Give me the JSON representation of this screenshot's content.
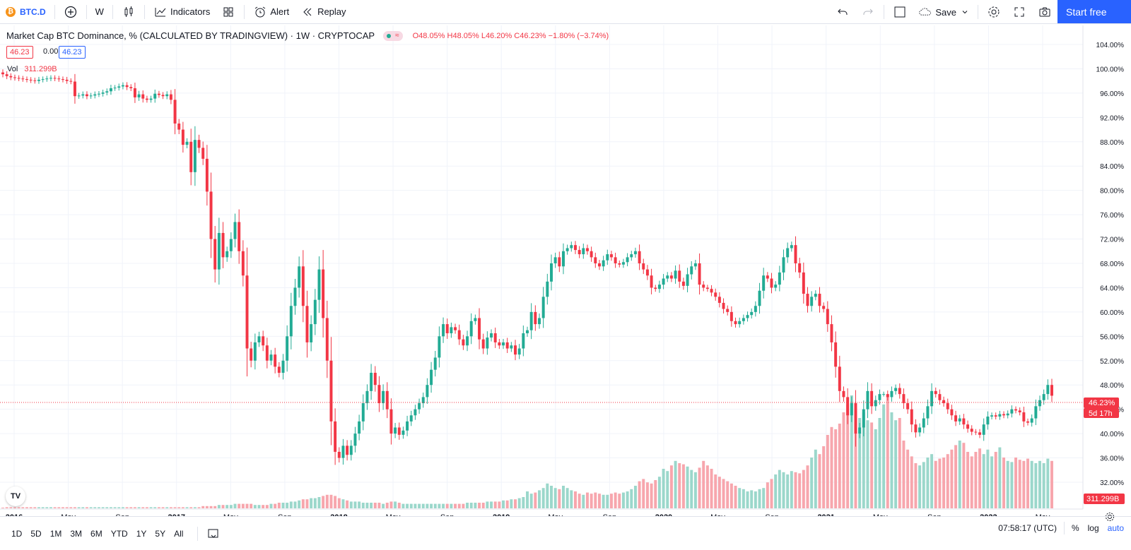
{
  "toolbar": {
    "symbol_badge": "₿",
    "symbol": "BTC.D",
    "interval": "W",
    "indicators_label": "Indicators",
    "alert_label": "Alert",
    "replay_label": "Replay",
    "save_label": "Save",
    "start_label": "Start free"
  },
  "legend": {
    "title": "Market Cap BTC Dominance, % (CALCULATED BY TRADINGVIEW) · 1W · CRYPTOCAP",
    "pill_icon": "≈",
    "ohlc": "O48.05% H48.05% L46.20% C46.23% −1.80% (−3.74%)",
    "bid": "46.23",
    "spread": "0.00",
    "ask": "46.23",
    "vol_label": "Vol",
    "vol_value": "311.299B"
  },
  "price_label": "46.23%",
  "countdown_label": "5d 17h",
  "volume_label": "311.299B",
  "logo": "TV",
  "bottom": {
    "ranges": [
      "1D",
      "5D",
      "1M",
      "3M",
      "6M",
      "YTD",
      "1Y",
      "5Y",
      "All"
    ],
    "time": "07:58:17 (UTC)",
    "percent": "%",
    "log": "log",
    "auto": "auto"
  },
  "colors": {
    "up": "#22ab94",
    "down": "#f23645",
    "vol_up": "#9bd7cb",
    "vol_down": "#f7a6ad",
    "accent": "#2962ff"
  },
  "chart_data": {
    "type": "candlestick",
    "title": "Market Cap BTC Dominance, % (CALCULATED BY TRADINGVIEW) · 1W · CRYPTOCAP",
    "ylim": [
      30,
      105
    ],
    "yticks": [
      "32.00%",
      "36.00%",
      "40.00%",
      "44.00%",
      "48.00%",
      "52.00%",
      "56.00%",
      "60.00%",
      "64.00%",
      "68.00%",
      "72.00%",
      "76.00%",
      "80.00%",
      "84.00%",
      "88.00%",
      "92.00%",
      "96.00%",
      "100.00%",
      "104.00%"
    ],
    "xticks": [
      {
        "label": "2016",
        "bold": true
      },
      {
        "label": "May"
      },
      {
        "label": "Sep"
      },
      {
        "label": "2017",
        "bold": true
      },
      {
        "label": "May"
      },
      {
        "label": "Sep"
      },
      {
        "label": "2018",
        "bold": true
      },
      {
        "label": "May"
      },
      {
        "label": "Sep"
      },
      {
        "label": "2019",
        "bold": true
      },
      {
        "label": "May"
      },
      {
        "label": "Sep"
      },
      {
        "label": "2020",
        "bold": true
      },
      {
        "label": "May"
      },
      {
        "label": "Sep"
      },
      {
        "label": "2021",
        "bold": true
      },
      {
        "label": "May"
      },
      {
        "label": "Sep"
      },
      {
        "label": "2022",
        "bold": true
      },
      {
        "label": "May"
      }
    ],
    "last_value": 46.23,
    "closes": [
      99.1,
      98.8,
      98.6,
      98.5,
      98.4,
      98.3,
      98.2,
      98.1,
      98.0,
      98.2,
      98.3,
      98.4,
      98.5,
      98.4,
      98.3,
      98.2,
      98.0,
      97.9,
      95.5,
      95.6,
      95.8,
      95.5,
      95.6,
      95.8,
      95.9,
      96.1,
      96.3,
      96.8,
      96.9,
      97.1,
      97.3,
      97.0,
      96.8,
      95.3,
      95.8,
      95.1,
      94.9,
      95.1,
      95.9,
      95.7,
      95.5,
      95.8,
      94.9,
      91.0,
      90.0,
      87.5,
      88.0,
      83.0,
      88.3,
      87.0,
      85.2,
      79.8,
      72.0,
      67.0,
      73.0,
      69.0,
      70.0,
      72.0,
      74.8,
      70.0,
      66.0,
      54.0,
      52.0,
      55.0,
      56.0,
      54.5,
      52.0,
      53.0,
      51.0,
      50.0,
      52.0,
      56.0,
      61.0,
      64.0,
      67.5,
      61.0,
      55.0,
      58.0,
      62.0,
      67.0,
      59.0,
      52.0,
      42.0,
      37.0,
      36.0,
      38.0,
      36.5,
      38.0,
      40.0,
      42.0,
      45.0,
      47.0,
      50.0,
      48.0,
      45.0,
      47.0,
      44.0,
      40.0,
      41.0,
      39.8,
      40.5,
      42.0,
      43.0,
      44.0,
      45.0,
      46.0,
      48.0,
      50.5,
      52.5,
      56.0,
      58.0,
      56.5,
      57.5,
      57.0,
      55.5,
      54.5,
      56.0,
      58.5,
      59.0,
      55.5,
      54.0,
      55.8,
      56.5,
      55.0,
      54.5,
      55.0,
      54.0,
      54.5,
      53.0,
      54.0,
      56.5,
      57.0,
      60.0,
      58.0,
      59.0,
      62.5,
      65.0,
      68.0,
      69.0,
      67.5,
      70.0,
      70.5,
      71.0,
      70.2,
      69.5,
      70.5,
      70.0,
      69.0,
      68.0,
      67.5,
      68.5,
      69.5,
      69.0,
      68.0,
      67.8,
      68.2,
      69.0,
      69.5,
      70.0,
      68.0,
      67.0,
      66.0,
      64.0,
      63.8,
      64.5,
      65.5,
      66.0,
      65.5,
      66.8,
      65.0,
      64.3,
      66.2,
      67.5,
      68.0,
      64.5,
      64.0,
      63.8,
      63.2,
      62.5,
      61.5,
      60.5,
      60.0,
      58.5,
      58.0,
      58.5,
      59.0,
      59.5,
      60.0,
      61.0,
      63.5,
      66.0,
      65.5,
      64.0,
      64.5,
      66.5,
      69.0,
      70.5,
      71.0,
      68.0,
      66.5,
      63.0,
      61.0,
      62.5,
      63.0,
      61.0,
      60.5,
      58.0,
      55.0,
      51.0,
      47.0,
      46.0,
      43.0,
      45.0,
      40.0,
      41.0,
      44.0,
      47.0,
      44.5,
      45.5,
      46.5,
      46.5,
      46.0,
      47.0,
      47.5,
      46.5,
      45.0,
      44.0,
      41.5,
      40.2,
      41.0,
      42.5,
      44.5,
      47.0,
      46.5,
      45.5,
      45.0,
      44.0,
      43.0,
      42.0,
      42.5,
      41.5,
      40.8,
      40.3,
      40.2,
      39.8,
      41.5,
      42.8,
      43.0,
      42.8,
      43.2,
      43.0,
      43.3,
      44.0,
      43.8,
      43.5,
      42.0,
      41.8,
      42.5,
      44.5,
      45.5,
      46.5,
      48.0,
      46.23
    ],
    "volume_fraction": [
      0,
      0.01,
      0.01,
      0.01,
      0.01,
      0.01,
      0.01,
      0.01,
      0.01,
      0.01,
      0.01,
      0.01,
      0.01,
      0.01,
      0.01,
      0.01,
      0.01,
      0.01,
      0.01,
      0.01,
      0.01,
      0.01,
      0.01,
      0.01,
      0.01,
      0.01,
      0.01,
      0.01,
      0.01,
      0.01,
      0.01,
      0.01,
      0.01,
      0.01,
      0.01,
      0.01,
      0.01,
      0.01,
      0.01,
      0.01,
      0.01,
      0.01,
      0.01,
      0.01,
      0.01,
      0.01,
      0.01,
      0.01,
      0.01,
      0.01,
      0.02,
      0.02,
      0.02,
      0.02,
      0.03,
      0.03,
      0.03,
      0.03,
      0.04,
      0.04,
      0.04,
      0.04,
      0.04,
      0.03,
      0.03,
      0.03,
      0.03,
      0.04,
      0.04,
      0.05,
      0.05,
      0.05,
      0.06,
      0.06,
      0.07,
      0.08,
      0.08,
      0.09,
      0.09,
      0.1,
      0.11,
      0.12,
      0.12,
      0.11,
      0.09,
      0.08,
      0.07,
      0.06,
      0.06,
      0.06,
      0.05,
      0.05,
      0.05,
      0.05,
      0.05,
      0.04,
      0.05,
      0.06,
      0.06,
      0.05,
      0.04,
      0.04,
      0.04,
      0.04,
      0.04,
      0.04,
      0.04,
      0.04,
      0.04,
      0.04,
      0.04,
      0.04,
      0.04,
      0.04,
      0.04,
      0.04,
      0.05,
      0.05,
      0.05,
      0.05,
      0.05,
      0.06,
      0.06,
      0.06,
      0.06,
      0.07,
      0.07,
      0.08,
      0.08,
      0.09,
      0.1,
      0.15,
      0.13,
      0.14,
      0.16,
      0.18,
      0.22,
      0.2,
      0.18,
      0.17,
      0.2,
      0.18,
      0.16,
      0.15,
      0.13,
      0.12,
      0.14,
      0.13,
      0.14,
      0.13,
      0.12,
      0.12,
      0.13,
      0.14,
      0.13,
      0.14,
      0.15,
      0.17,
      0.2,
      0.24,
      0.26,
      0.23,
      0.22,
      0.25,
      0.28,
      0.35,
      0.33,
      0.38,
      0.42,
      0.4,
      0.39,
      0.37,
      0.34,
      0.32,
      0.36,
      0.42,
      0.38,
      0.35,
      0.3,
      0.28,
      0.26,
      0.24,
      0.22,
      0.2,
      0.18,
      0.17,
      0.15,
      0.16,
      0.15,
      0.17,
      0.18,
      0.23,
      0.26,
      0.3,
      0.34,
      0.32,
      0.3,
      0.33,
      0.32,
      0.31,
      0.34,
      0.38,
      0.45,
      0.52,
      0.48,
      0.55,
      0.65,
      0.72,
      0.7,
      0.75,
      0.85,
      0.92,
      1.0,
      0.86,
      0.8,
      0.85,
      0.78,
      0.76,
      0.7,
      0.8,
      0.92,
      1.0,
      0.85,
      0.78,
      0.8,
      0.6,
      0.52,
      0.46,
      0.4,
      0.38,
      0.41,
      0.45,
      0.48,
      0.42,
      0.44,
      0.45,
      0.48,
      0.52,
      0.56,
      0.6,
      0.58,
      0.5,
      0.46,
      0.5,
      0.53,
      0.48,
      0.52,
      0.46,
      0.5,
      0.54,
      0.45,
      0.42,
      0.41,
      0.45,
      0.43,
      0.42,
      0.44,
      0.42,
      0.4,
      0.42,
      0.4,
      0.44,
      0.42,
      0.45,
      0.5,
      0.58,
      0.73,
      0.75,
      0.42,
      0.41,
      0.4,
      0.41,
      0.4,
      0.1
    ]
  }
}
